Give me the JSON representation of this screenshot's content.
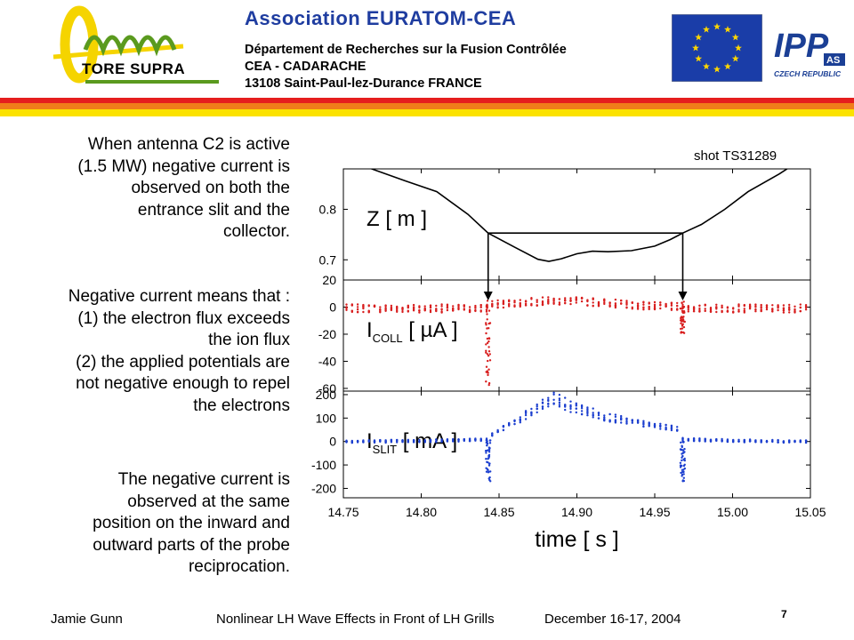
{
  "header": {
    "logo_label": "TORE SUPRA",
    "title": "Association  EURATOM-CEA",
    "lines": [
      "Département de Recherches sur la Fusion Contrôlée",
      "CEA - CADARACHE",
      "13108 Saint-Paul-lez-Durance   FRANCE"
    ],
    "ipp_label": "IPP",
    "ipp_badge": "AS",
    "ipp_sub": "CZECH REPUBLIC"
  },
  "body": {
    "paragraph1": [
      "When antenna C2 is active",
      "(1.5 MW) negative current is",
      "observed on both the",
      "entrance slit and the",
      "collector."
    ],
    "paragraph2": [
      "Negative current means that :",
      "(1) the electron flux exceeds",
      "the ion flux",
      "(2) the applied potentials are",
      "not negative enough to repel",
      "the electrons"
    ],
    "paragraph3": [
      "The negative current is",
      "observed at the same",
      "position on the inward and",
      "outward parts of the probe",
      "reciprocation."
    ]
  },
  "chart_data": {
    "type": "line",
    "annotation": "shot TS31289",
    "xlabel": "time [ s ]",
    "xlim": [
      14.75,
      15.05
    ],
    "x_ticks": [
      "14.75",
      "14.80",
      "14.85",
      "14.90",
      "14.95",
      "15.00",
      "15.05"
    ],
    "x_tick_values": [
      14.75,
      14.8,
      14.85,
      14.9,
      14.95,
      15.0,
      15.05
    ],
    "markers": [
      14.843,
      14.968
    ],
    "panels": [
      {
        "id": "z",
        "label_main": "Z [ m ]",
        "label_sub": "",
        "label_rest": "",
        "ylim": [
          0.66,
          0.88
        ],
        "y_ticks": [
          0.8,
          0.7
        ],
        "y_tick_labels": [
          "0.8",
          "0.7"
        ],
        "color": "#000000",
        "style": "line",
        "points": [
          [
            14.75,
            0.9
          ],
          [
            14.77,
            0.878
          ],
          [
            14.79,
            0.856
          ],
          [
            14.81,
            0.835
          ],
          [
            14.83,
            0.79
          ],
          [
            14.843,
            0.753
          ],
          [
            14.86,
            0.725
          ],
          [
            14.875,
            0.701
          ],
          [
            14.882,
            0.697
          ],
          [
            14.89,
            0.702
          ],
          [
            14.9,
            0.712
          ],
          [
            14.91,
            0.717
          ],
          [
            14.92,
            0.716
          ],
          [
            14.935,
            0.718
          ],
          [
            14.95,
            0.727
          ],
          [
            14.96,
            0.74
          ],
          [
            14.968,
            0.753
          ],
          [
            14.98,
            0.77
          ],
          [
            14.995,
            0.8
          ],
          [
            15.01,
            0.835
          ],
          [
            15.03,
            0.87
          ],
          [
            15.045,
            0.9
          ]
        ],
        "box": {
          "x": [
            14.843,
            14.968
          ],
          "y": 0.753
        }
      },
      {
        "id": "icoll",
        "label_main": "I",
        "label_sub": "COLL",
        "label_rest": " [ µA ]",
        "ylim": [
          -62,
          20
        ],
        "y_ticks": [
          20,
          0,
          -20,
          -40,
          -60
        ],
        "y_tick_labels": [
          "20",
          "0",
          "-20",
          "-40",
          "-60"
        ],
        "color": "#d81e1e",
        "style": "scatter",
        "dip_min": [
          -58,
          -20
        ]
      },
      {
        "id": "islit",
        "label_main": "I",
        "label_sub": "SLIT",
        "label_rest": " [ mA ]",
        "ylim": [
          -240,
          215
        ],
        "y_ticks": [
          200,
          100,
          0,
          -100,
          -200
        ],
        "y_tick_labels": [
          "200",
          "100",
          "0",
          "-100",
          "-200"
        ],
        "color": "#1c3fcf",
        "style": "scatter",
        "dip_min": [
          -170,
          -170
        ]
      }
    ]
  },
  "footer": {
    "author": "Jamie Gunn",
    "title": "Nonlinear LH Wave Effects in Front of LH Grills",
    "date": "December 16-17, 2004",
    "page": "7"
  }
}
